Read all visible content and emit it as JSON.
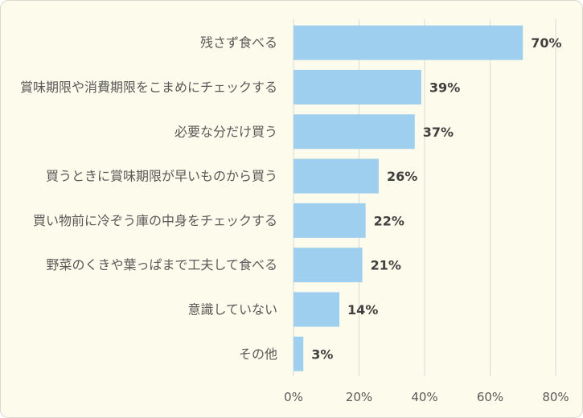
{
  "chart_data": {
    "type": "bar",
    "orientation": "horizontal",
    "categories": [
      "残さず食べる",
      "賞味期限や消費期限をこまめにチェックする",
      "必要な分だけ買う",
      "買うときに賞味期限が早いものから買う",
      "買い物前に冷ぞう庫の中身をチェックする",
      "野菜のくきや葉っぱまで工夫して食べる",
      "意識していない",
      "その他"
    ],
    "values": [
      70,
      39,
      37,
      26,
      22,
      21,
      14,
      3
    ],
    "data_labels": [
      "70%",
      "39%",
      "37%",
      "26%",
      "22%",
      "21%",
      "14%",
      "3%"
    ],
    "x_ticks": [
      0,
      20,
      40,
      60,
      80
    ],
    "x_tick_labels": [
      "0%",
      "20%",
      "40%",
      "60%",
      "80%"
    ],
    "xlim": [
      0,
      80
    ],
    "grid": true
  },
  "colors": {
    "bar": "#9fcfef",
    "background": "#fdfbeb",
    "border": "#d9d8cf",
    "grid": "#d9d9d9",
    "category_text": "#595959",
    "value_text": "#404040"
  }
}
